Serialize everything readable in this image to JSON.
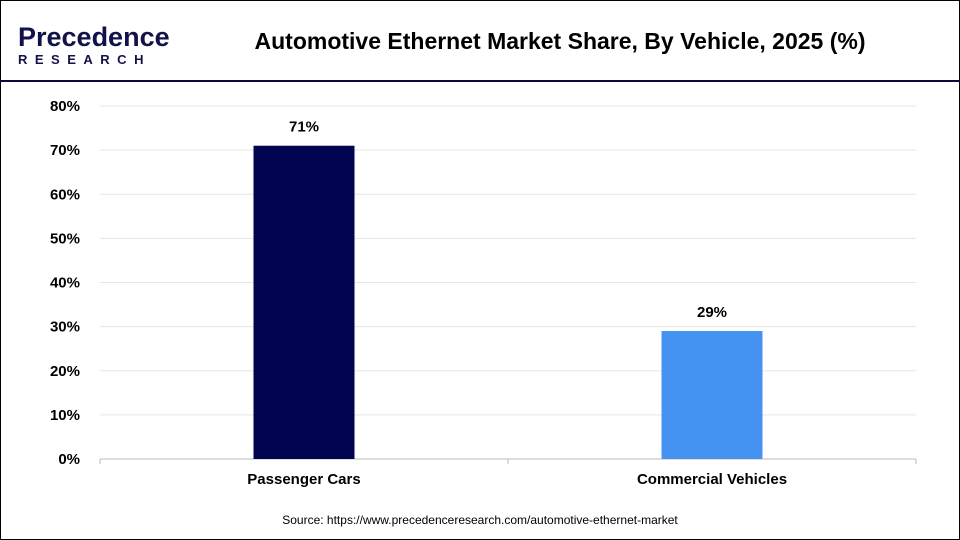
{
  "logo": {
    "name": "Precedence",
    "sub": "RESEARCH"
  },
  "title": "Automotive Ethernet Market Share, By Vehicle, 2025 (%)",
  "source": "Source: https://www.precedenceresearch.com/automotive-ethernet-market",
  "chart_data": {
    "type": "bar",
    "title": "Automotive Ethernet Market Share, By Vehicle, 2025 (%)",
    "categories": [
      "Passenger Cars",
      "Commercial Vehicles"
    ],
    "values": [
      71,
      29
    ],
    "data_labels": [
      "71%",
      "29%"
    ],
    "colors": [
      "#020452",
      "#4493f0"
    ],
    "ylim": [
      0,
      80
    ],
    "yticks": [
      "0%",
      "10%",
      "20%",
      "30%",
      "40%",
      "50%",
      "60%",
      "70%",
      "80%"
    ],
    "grid": true,
    "xlabel": "",
    "ylabel": ""
  }
}
